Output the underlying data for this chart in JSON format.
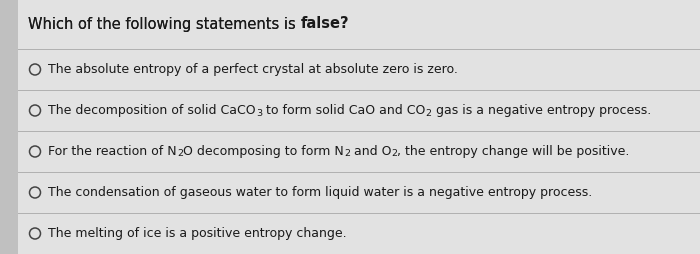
{
  "title_plain": "Which of the following statements is ",
  "title_bold": "false?",
  "bg_color": "#c8c8c8",
  "panel_color": "#e2e2e2",
  "line_color": "#b0b0b0",
  "text_color": "#1a1a1a",
  "circle_color": "#444444",
  "options": [
    [
      {
        "t": "The absolute entropy of a perfect crystal at absolute zero is zero.",
        "sub": false
      }
    ],
    [
      {
        "t": "The decomposition of solid CaCO",
        "sub": false
      },
      {
        "t": "3",
        "sub": true
      },
      {
        "t": " to form solid CaO and CO",
        "sub": false
      },
      {
        "t": "2",
        "sub": true
      },
      {
        "t": " gas is a negative entropy process.",
        "sub": false
      }
    ],
    [
      {
        "t": "For the reaction of N",
        "sub": false
      },
      {
        "t": "2",
        "sub": true
      },
      {
        "t": "O decomposing to form N",
        "sub": false
      },
      {
        "t": "2",
        "sub": true
      },
      {
        "t": " and O",
        "sub": false
      },
      {
        "t": "2",
        "sub": true
      },
      {
        "t": ", the entropy change will be positive.",
        "sub": false
      }
    ],
    [
      {
        "t": "The condensation of gaseous water to form liquid water is a negative entropy process.",
        "sub": false
      }
    ],
    [
      {
        "t": "The melting of ice is a positive entropy change.",
        "sub": false
      }
    ]
  ],
  "figsize": [
    7.0,
    2.54
  ],
  "dpi": 100
}
